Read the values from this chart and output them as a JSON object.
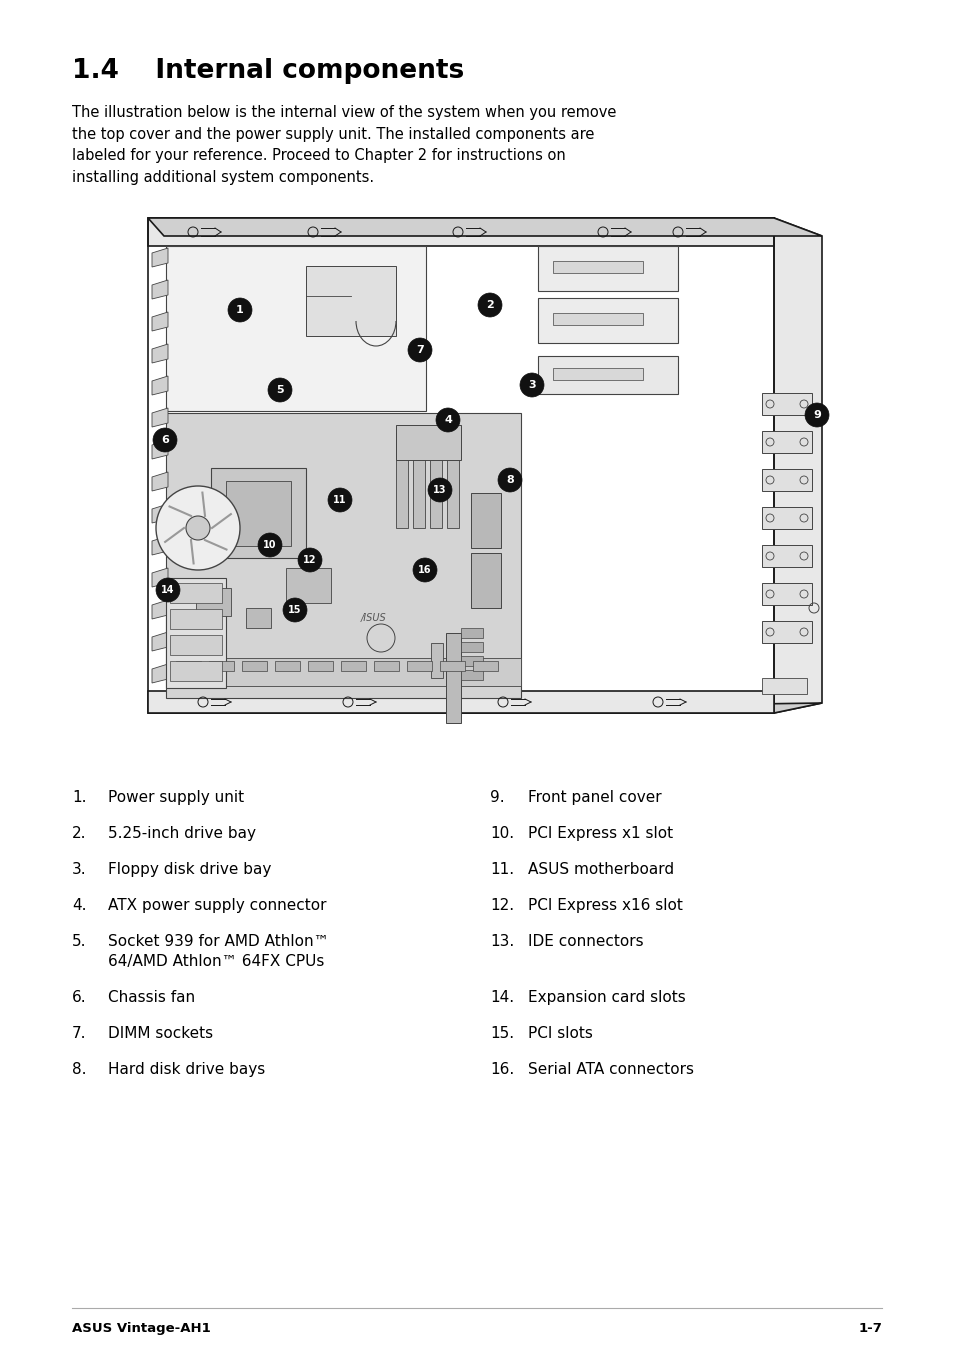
{
  "title": "1.4    Internal components",
  "intro_text": "The illustration below is the internal view of the system when you remove\nthe top cover and the power supply unit. The installed components are\nlabeled for your reference. Proceed to Chapter 2 for instructions on\ninstalling additional system components.",
  "left_items": [
    {
      "num": "1.",
      "text": "Power supply unit"
    },
    {
      "num": "2.",
      "text": "5.25-inch drive bay"
    },
    {
      "num": "3.",
      "text": "Floppy disk drive bay"
    },
    {
      "num": "4.",
      "text": "ATX power supply connector"
    },
    {
      "num": "5.",
      "text": "Socket 939 for AMD Athlon™",
      "text2": "64/AMD Athlon™ 64FX CPUs"
    },
    {
      "num": "6.",
      "text": "Chassis fan"
    },
    {
      "num": "7.",
      "text": "DIMM sockets"
    },
    {
      "num": "8.",
      "text": "Hard disk drive bays"
    }
  ],
  "right_items": [
    {
      "num": "9.",
      "text": "Front panel cover"
    },
    {
      "num": "10.",
      "text": "PCI Express x1 slot"
    },
    {
      "num": "11.",
      "text": "ASUS motherboard"
    },
    {
      "num": "12.",
      "text": "PCI Express x16 slot"
    },
    {
      "num": "13.",
      "text": "IDE connectors"
    },
    {
      "num": "14.",
      "text": "Expansion card slots"
    },
    {
      "num": "15.",
      "text": "PCI slots"
    },
    {
      "num": "16.",
      "text": "Serial ATA connectors"
    }
  ],
  "footer_left": "ASUS Vintage-AH1",
  "footer_right": "1-7",
  "bg_color": "#ffffff",
  "text_color": "#000000",
  "title_fontsize": 19,
  "body_fontsize": 10.5,
  "list_fontsize": 11
}
